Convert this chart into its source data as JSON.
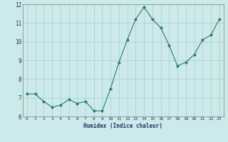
{
  "x": [
    0,
    1,
    2,
    3,
    4,
    5,
    6,
    7,
    8,
    9,
    10,
    11,
    12,
    13,
    14,
    15,
    16,
    17,
    18,
    19,
    20,
    21,
    22,
    23
  ],
  "y": [
    7.2,
    7.2,
    6.8,
    6.5,
    6.6,
    6.9,
    6.7,
    6.8,
    6.3,
    6.3,
    7.5,
    8.9,
    10.1,
    11.2,
    11.85,
    11.2,
    10.75,
    9.8,
    8.7,
    8.9,
    9.3,
    10.1,
    10.35,
    11.2
  ],
  "xlabel": "Humidex (Indice chaleur)",
  "ylim": [
    6,
    12
  ],
  "yticks": [
    6,
    7,
    8,
    9,
    10,
    11,
    12
  ],
  "xticks": [
    0,
    1,
    2,
    3,
    4,
    5,
    6,
    7,
    8,
    9,
    10,
    11,
    12,
    13,
    14,
    15,
    16,
    17,
    18,
    19,
    20,
    21,
    22,
    23
  ],
  "line_color": "#2a7a6a",
  "marker_color": "#2a7a6a",
  "bg_color": "#cceaea",
  "grid_color": "#aacccc",
  "tick_label_color": "#223366",
  "axis_label_color": "#223366"
}
